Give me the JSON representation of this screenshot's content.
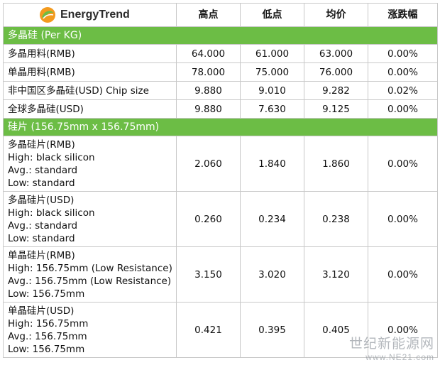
{
  "header": {
    "brand": "EnergyTrend",
    "columns": [
      "高点",
      "低点",
      "均价",
      "涨跌幅"
    ]
  },
  "sections": [
    {
      "title": "多晶硅 (Per KG)",
      "rows": [
        {
          "lines": [
            "多晶用料(RMB)"
          ],
          "high": "64.000",
          "low": "61.000",
          "avg": "63.000",
          "change": "0.00%"
        },
        {
          "lines": [
            "单晶用料(RMB)"
          ],
          "high": "78.000",
          "low": "75.000",
          "avg": "76.000",
          "change": "0.00%"
        },
        {
          "lines": [
            "非中国区多晶硅(USD) Chip size"
          ],
          "high": "9.880",
          "low": "9.010",
          "avg": "9.282",
          "change": "0.02%"
        },
        {
          "lines": [
            "全球多晶硅(USD)"
          ],
          "high": "9.880",
          "low": "7.630",
          "avg": "9.125",
          "change": "0.00%"
        }
      ]
    },
    {
      "title": "硅片 (156.75mm x 156.75mm)",
      "rows": [
        {
          "lines": [
            "多晶硅片(RMB)",
            "High: black silicon",
            "Avg.: standard",
            "Low: standard"
          ],
          "high": "2.060",
          "low": "1.840",
          "avg": "1.860",
          "change": "0.00%"
        },
        {
          "lines": [
            "多晶硅片(USD)",
            "High: black silicon",
            "Avg.: standard",
            "Low: standard"
          ],
          "high": "0.260",
          "low": "0.234",
          "avg": "0.238",
          "change": "0.00%"
        },
        {
          "lines": [
            "单晶硅片(RMB)",
            "High: 156.75mm (Low Resistance)",
            "Avg.: 156.75mm (Low Resistance)",
            "Low: 156.75mm"
          ],
          "high": "3.150",
          "low": "3.020",
          "avg": "3.120",
          "change": "0.00%"
        },
        {
          "lines": [
            "单晶硅片(USD)",
            "High: 156.75mm",
            "Avg.: 156.75mm",
            "Low: 156.75mm"
          ],
          "high": "0.421",
          "low": "0.395",
          "avg": "0.405",
          "change": "0.00%"
        }
      ]
    }
  ],
  "watermark": {
    "text": "世纪新能源网",
    "url": "www.NE21.com"
  },
  "colors": {
    "section_bg": "#6cbd45",
    "logo_orange": "#f39a1e",
    "logo_green": "#6cbd45"
  }
}
